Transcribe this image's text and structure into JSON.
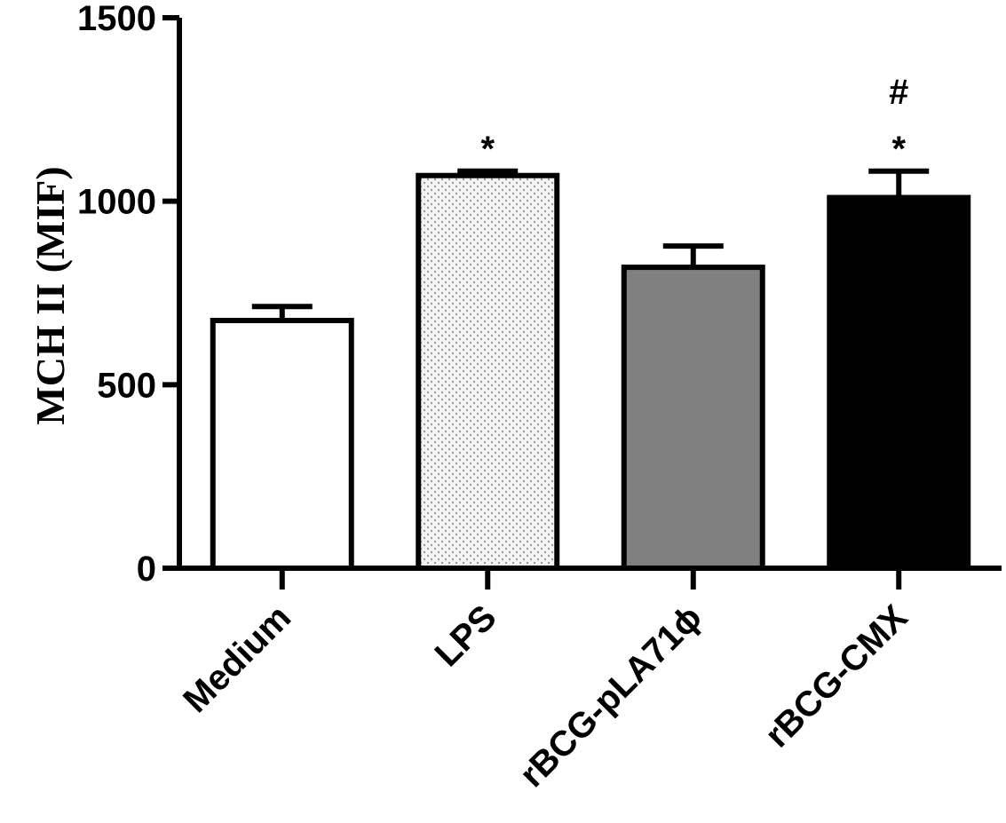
{
  "chart_data": {
    "type": "bar",
    "title": "",
    "xlabel": "",
    "ylabel": "MCH II (MIF)",
    "ylim": [
      0,
      1500
    ],
    "yticks": [
      0,
      500,
      1000,
      1500
    ],
    "ytick_labels": [
      "0",
      "500",
      "1000",
      "1500"
    ],
    "grid": false,
    "categories": [
      "Medium",
      "LPS",
      "rBCG-pLA71ϕ",
      "rBCG-CMX"
    ],
    "values": [
      675,
      1070,
      820,
      1010
    ],
    "errors": [
      38,
      12,
      58,
      72
    ],
    "annotations": [
      {
        "category": "LPS",
        "marks": [
          "*"
        ]
      },
      {
        "category": "rBCG-CMX",
        "marks": [
          "*",
          "#"
        ]
      }
    ],
    "bar_styles": [
      {
        "category": "Medium",
        "fill": "#ffffff",
        "pattern": "none"
      },
      {
        "category": "LPS",
        "fill": "#f2f2f2",
        "pattern": "dots"
      },
      {
        "category": "rBCG-pLA71ϕ",
        "fill": "#808080",
        "pattern": "none"
      },
      {
        "category": "rBCG-CMX",
        "fill": "#000000",
        "pattern": "none"
      }
    ],
    "axis_color": "#000000"
  }
}
